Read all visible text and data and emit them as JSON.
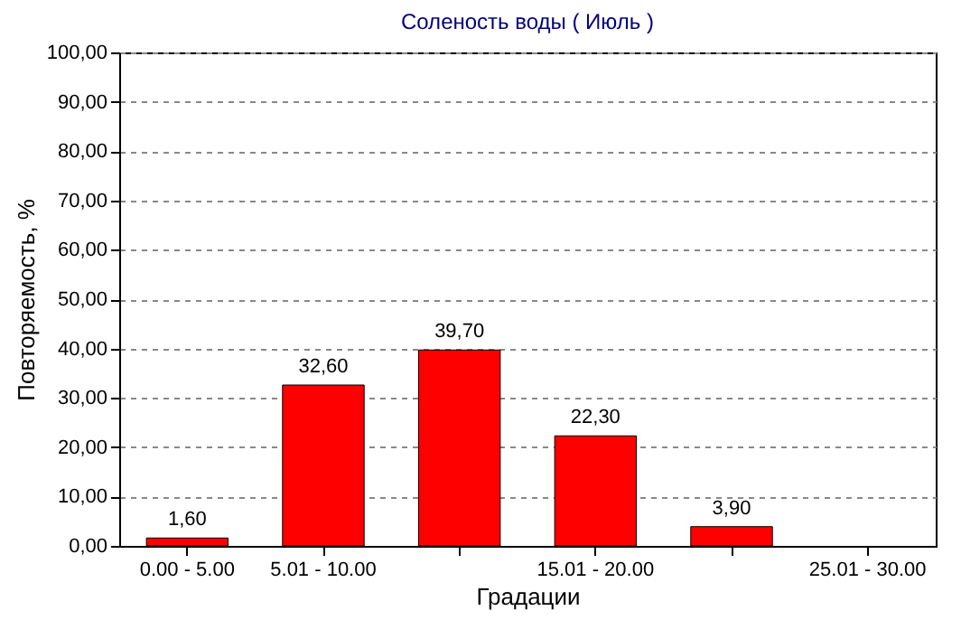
{
  "chart_data": {
    "type": "bar",
    "title": "Соленость воды    ( Июль )",
    "xlabel": "Градации",
    "ylabel": "Повторяемость, %",
    "categories": [
      "0.00 - 5.00",
      "5.01 - 10.00",
      null,
      "15.01 - 20.00",
      null,
      "25.01 - 30.00"
    ],
    "values": [
      1.6,
      32.6,
      39.7,
      22.3,
      3.9,
      null
    ],
    "value_labels": [
      "1,60",
      "32,60",
      "39,70",
      "22,30",
      "3,90",
      null
    ],
    "color": "#ff0000",
    "ylim": [
      0,
      100
    ],
    "yticks": [
      {
        "value": 0,
        "label": "0,00"
      },
      {
        "value": 10,
        "label": "10,00"
      },
      {
        "value": 20,
        "label": "20,00"
      },
      {
        "value": 30,
        "label": "30,00"
      },
      {
        "value": 40,
        "label": "40,00"
      },
      {
        "value": 50,
        "label": "50,00"
      },
      {
        "value": 60,
        "label": "60,00"
      },
      {
        "value": 70,
        "label": "70,00"
      },
      {
        "value": 80,
        "label": "80,00"
      },
      {
        "value": 90,
        "label": "90,00"
      },
      {
        "value": 100,
        "label": "100,00"
      }
    ],
    "grid": "y"
  }
}
